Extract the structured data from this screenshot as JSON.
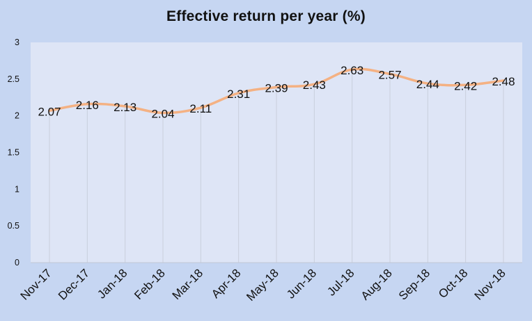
{
  "chart_data": {
    "type": "line",
    "title": "Effective return per year (%)",
    "xlabel": "",
    "ylabel": "",
    "categories": [
      "Nov-17",
      "Dec-17",
      "Jan-18",
      "Feb-18",
      "Mar-18",
      "Apr-18",
      "May-18",
      "Jun-18",
      "Jul-18",
      "Aug-18",
      "Sep-18",
      "Oct-18",
      "Nov-18"
    ],
    "series": [
      {
        "values": [
          2.07,
          2.16,
          2.13,
          2.04,
          2.11,
          2.31,
          2.39,
          2.43,
          2.63,
          2.57,
          2.44,
          2.42,
          2.48
        ]
      }
    ],
    "data_labels": [
      "2.07",
      "2.16",
      "2.13",
      "2.04",
      "2.11",
      "2.31",
      "2.39",
      "2.43",
      "2.63",
      "2.57",
      "2.44",
      "2.42",
      "2.48"
    ],
    "yticks": [
      "0",
      "0.5",
      "1",
      "1.5",
      "2",
      "2.5",
      "3"
    ],
    "ylim": [
      0,
      3
    ],
    "grid": "vertical",
    "legend": "none",
    "colors": {
      "background": "#c6d6f2",
      "plot_area": "#dee5f6",
      "line": "#f4b183",
      "gridline": "#c9cfdc",
      "text": "#111111"
    }
  }
}
